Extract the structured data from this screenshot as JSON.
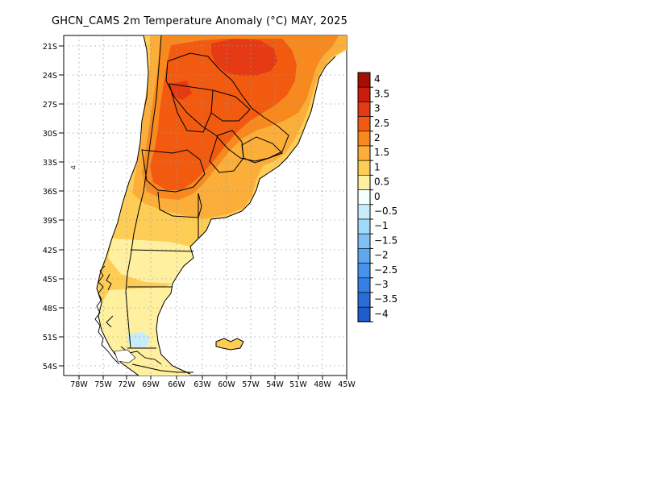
{
  "title": "GHCN_CAMS 2m Temperature Anomaly (°C) MAY, 2025",
  "lat_labels": [
    "21S",
    "24S",
    "27S",
    "30S",
    "33S",
    "36S",
    "39S",
    "42S",
    "45S",
    "48S",
    "51S",
    "54S"
  ],
  "lon_labels": [
    "78W",
    "75W",
    "72W",
    "69W",
    "66W",
    "63W",
    "60W",
    "57W",
    "54W",
    "51W",
    "48W",
    "45W"
  ],
  "colorbar": {
    "labels": [
      "4",
      "3.5",
      "3",
      "2.5",
      "2",
      "1.5",
      "1",
      "0.5",
      "0",
      "−0.5",
      "−1",
      "−1.5",
      "−2",
      "−2.5",
      "−3",
      "−3.5",
      "−4"
    ],
    "colors": [
      "#a50f05",
      "#cc1c0c",
      "#e63a14",
      "#f25a10",
      "#f7891f",
      "#fbae3a",
      "#fdcd55",
      "#fff0a0",
      "#f4ffff",
      "#c7ecfb",
      "#a0d8f8",
      "#80c0f5",
      "#5fa8f0",
      "#4793ec",
      "#367fe6",
      "#2a6dd9",
      "#1f5ccc"
    ]
  },
  "map": {
    "region": "Southern South America (Argentina, Chile, Uruguay, Paraguay)",
    "lat_range": [
      "20S",
      "55S"
    ],
    "lon_range": [
      "79W",
      "45W"
    ]
  }
}
